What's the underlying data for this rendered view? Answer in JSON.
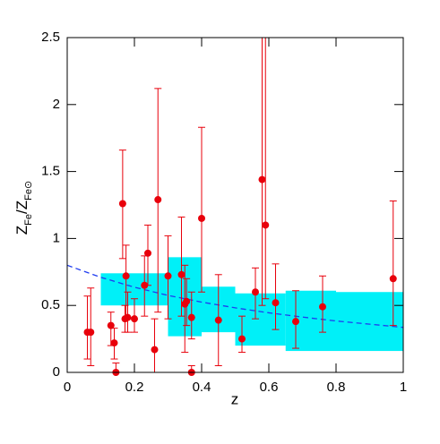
{
  "chart_data": {
    "type": "scatter",
    "x_label": "z",
    "y_label": [
      {
        "text": "Z",
        "sub": false
      },
      {
        "text": "Fe",
        "sub": true
      },
      {
        "text": "/",
        "sub": false
      },
      {
        "text": "Z",
        "sub": false
      },
      {
        "text": "Fe⊙",
        "sub": true
      }
    ],
    "xlim": [
      0,
      1
    ],
    "ylim": [
      0,
      2.5
    ],
    "xticks": [
      0,
      0.2,
      0.4,
      0.6,
      0.8,
      1
    ],
    "yticks": [
      0,
      0.5,
      1,
      1.5,
      2,
      2.5
    ],
    "bands": {
      "color": "#00f0f8",
      "x_low": [
        0.1,
        0.3,
        0.4,
        0.5,
        0.65,
        0.8
      ],
      "x_high": [
        0.3,
        0.4,
        0.5,
        0.65,
        0.8,
        1.0
      ],
      "y_low": [
        0.5,
        0.27,
        0.3,
        0.2,
        0.16,
        0.16
      ],
      "y_high": [
        0.74,
        0.86,
        0.64,
        0.59,
        0.61,
        0.6
      ]
    },
    "curve": {
      "color": "#1f3cf0",
      "dashed": true,
      "x": [
        0,
        0.1,
        0.2,
        0.3,
        0.4,
        0.5,
        0.6,
        0.7,
        0.8,
        0.9,
        1.0
      ],
      "y": [
        0.8,
        0.71,
        0.636,
        0.575,
        0.525,
        0.482,
        0.445,
        0.413,
        0.384,
        0.36,
        0.336
      ]
    },
    "series": [
      {
        "color": "#e8000b",
        "x": [
          0.06,
          0.07,
          0.13,
          0.14,
          0.145,
          0.165,
          0.175,
          0.18,
          0.172,
          0.2,
          0.23,
          0.24,
          0.26,
          0.27,
          0.3,
          0.34,
          0.35,
          0.355,
          0.37,
          0.37,
          0.4,
          0.45,
          0.52,
          0.56,
          0.58,
          0.59,
          0.62,
          0.68,
          0.76,
          0.97
        ],
        "y": [
          0.3,
          0.3,
          0.35,
          0.22,
          0.0,
          1.26,
          0.72,
          0.41,
          0.4,
          0.4,
          0.65,
          0.89,
          0.17,
          1.29,
          0.72,
          0.73,
          0.51,
          0.53,
          0.41,
          0.0,
          1.15,
          0.39,
          0.25,
          0.6,
          1.44,
          1.1,
          0.52,
          0.38,
          0.49,
          0.7
        ],
        "y_low": [
          0.1,
          0.05,
          0.2,
          0.1,
          0.0,
          0.85,
          0.4,
          0.3,
          0.3,
          0.3,
          0.42,
          0.65,
          0.0,
          0.45,
          0.4,
          0.42,
          0.15,
          0.35,
          0.25,
          0.0,
          0.6,
          0.05,
          0.15,
          0.4,
          0.5,
          0.55,
          0.32,
          0.18,
          0.3,
          0.35
        ],
        "y_high": [
          0.57,
          0.63,
          0.45,
          0.33,
          0.07,
          1.66,
          0.95,
          0.6,
          0.5,
          0.55,
          0.87,
          1.1,
          0.4,
          2.12,
          1.02,
          1.16,
          0.8,
          0.7,
          0.6,
          0.05,
          1.83,
          0.73,
          0.42,
          0.78,
          2.5,
          2.5,
          0.81,
          0.61,
          0.72,
          1.28
        ]
      }
    ]
  }
}
